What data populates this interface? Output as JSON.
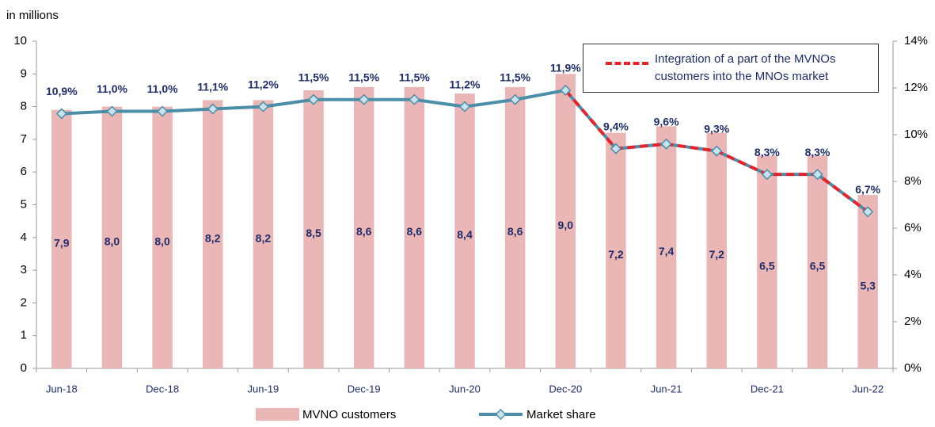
{
  "chart_data": {
    "type": "combo",
    "y_label": "in millions",
    "categories": [
      "Jun-18",
      null,
      "Dec-18",
      null,
      "Jun-19",
      null,
      "Dec-19",
      null,
      "Jun-20",
      null,
      "Dec-20",
      null,
      "Jun-21",
      null,
      "Dec-21",
      null,
      "Jun-22"
    ],
    "ylim": [
      0,
      10
    ],
    "yticks": [
      0,
      1,
      2,
      3,
      4,
      5,
      6,
      7,
      8,
      9,
      10
    ],
    "y2lim": [
      0,
      14
    ],
    "y2ticks": [
      {
        "value": 0,
        "label": "0%"
      },
      {
        "value": 2,
        "label": "2%"
      },
      {
        "value": 4,
        "label": "4%"
      },
      {
        "value": 6,
        "label": "6%"
      },
      {
        "value": 8,
        "label": "8%"
      },
      {
        "value": 10,
        "label": "10%"
      },
      {
        "value": 12,
        "label": "12%"
      },
      {
        "value": 14,
        "label": "14%"
      }
    ],
    "series": [
      {
        "name": "MVNO customers",
        "type": "bar",
        "color": "#eab6b6",
        "values": [
          7.9,
          8.0,
          8.0,
          8.2,
          8.2,
          8.5,
          8.6,
          8.6,
          8.4,
          8.6,
          9.0,
          7.2,
          7.4,
          7.2,
          6.5,
          6.5,
          5.3
        ],
        "value_labels": [
          "7,9",
          "8,0",
          "8,0",
          "8,2",
          "8,2",
          "8,5",
          "8,6",
          "8,6",
          "8,4",
          "8,6",
          "9,0",
          "7,2",
          "7,4",
          "7,2",
          "6,5",
          "6,5",
          "5,3"
        ]
      },
      {
        "name": "Market share",
        "type": "line",
        "axis": "y2",
        "color": "#4a8ea8",
        "marker_color": "#c8e2ee",
        "values": [
          10.9,
          11.0,
          11.0,
          11.1,
          11.2,
          11.5,
          11.5,
          11.5,
          11.2,
          11.5,
          11.9,
          9.4,
          9.6,
          9.3,
          8.3,
          8.3,
          6.7
        ],
        "value_labels": [
          "10,9%",
          "11,0%",
          "11,0%",
          "11,1%",
          "11,2%",
          "11,5%",
          "11,5%",
          "11,5%",
          "11,2%",
          "11,5%",
          "11,9%",
          "9,4%",
          "9,6%",
          "9,3%",
          "8,3%",
          "8,3%",
          "6,7%"
        ]
      },
      {
        "name": "Integration of a part of the MVNOs customers into the MNOs market",
        "type": "dashed",
        "axis": "y2",
        "color": "#e8222a",
        "values": [
          null,
          null,
          null,
          null,
          null,
          null,
          null,
          null,
          null,
          null,
          11.9,
          9.4,
          9.6,
          9.3,
          8.3,
          8.3,
          6.7
        ]
      }
    ]
  }
}
